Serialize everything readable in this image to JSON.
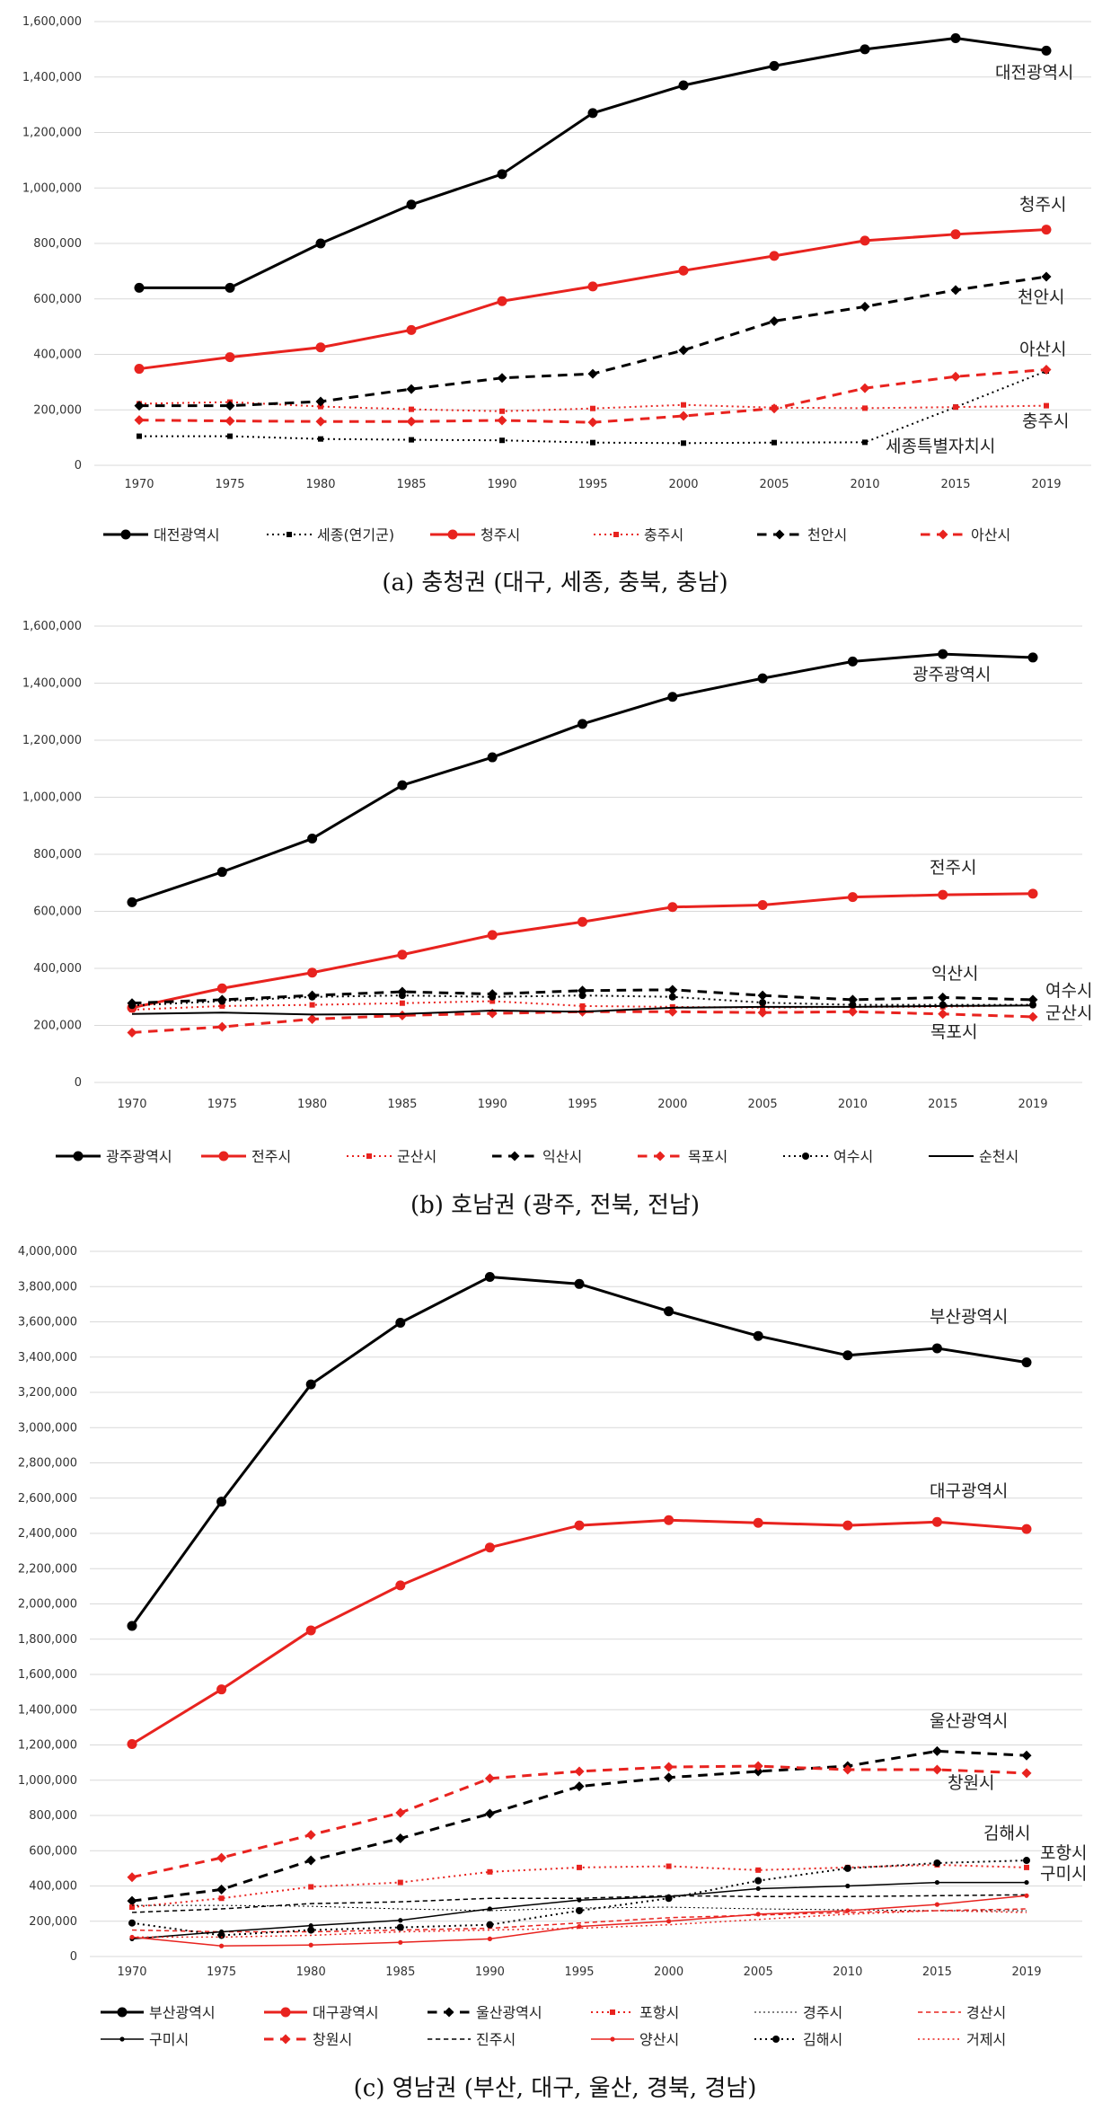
{
  "chart_data": [
    {
      "type": "line",
      "caption": "(a)  충청권 (대구, 세종, 충북, 충남)",
      "x": [
        "1970",
        "1975",
        "1980",
        "1985",
        "1990",
        "1995",
        "2000",
        "2005",
        "2010",
        "2015",
        "2019"
      ],
      "ylim": [
        0,
        1600000
      ],
      "ytick_step": 200000,
      "y_ticks": [
        "0",
        "200,000",
        "400,000",
        "600,000",
        "800,000",
        "1,000,000",
        "1,200,000",
        "1,400,000",
        "1,600,000"
      ],
      "series": [
        {
          "name": "대전광역시",
          "color": "#000000",
          "dash": "solid",
          "marker": "circle",
          "width": 3,
          "values": [
            640000,
            640000,
            800000,
            940000,
            1050000,
            1270000,
            1370000,
            1440000,
            1500000,
            1540000,
            1495000
          ]
        },
        {
          "name": "세종(연기군)",
          "color": "#000000",
          "dash": "dot",
          "marker": "square",
          "width": 2,
          "values": [
            105000,
            105000,
            95000,
            92000,
            90000,
            82000,
            80000,
            82000,
            83000,
            210000,
            340000
          ]
        },
        {
          "name": "청주시",
          "color": "#e8231f",
          "dash": "solid",
          "marker": "circle",
          "width": 3,
          "values": [
            348000,
            390000,
            425000,
            488000,
            592000,
            645000,
            702000,
            755000,
            810000,
            833000,
            850000
          ]
        },
        {
          "name": "충주시",
          "color": "#e8231f",
          "dash": "dot",
          "marker": "square",
          "width": 2,
          "values": [
            222000,
            228000,
            212000,
            202000,
            195000,
            205000,
            218000,
            208000,
            206000,
            210000,
            215000
          ]
        },
        {
          "name": "천안시",
          "color": "#000000",
          "dash": "dash",
          "marker": "diamond",
          "width": 3,
          "values": [
            215000,
            215000,
            230000,
            275000,
            315000,
            330000,
            415000,
            520000,
            572000,
            632000,
            680000
          ]
        },
        {
          "name": "아산시",
          "color": "#e8231f",
          "dash": "dash",
          "marker": "diamond",
          "width": 3,
          "values": [
            163000,
            160000,
            158000,
            158000,
            162000,
            155000,
            178000,
            205000,
            278000,
            320000,
            345000
          ]
        }
      ],
      "annotations": [
        "대전광역시",
        "청주시",
        "천안시",
        "아산시",
        "충주시",
        "세종특별자치시"
      ]
    },
    {
      "type": "line",
      "caption": "(b)  호남권 (광주, 전북, 전남)",
      "x": [
        "1970",
        "1975",
        "1980",
        "1985",
        "1990",
        "1995",
        "2000",
        "2005",
        "2010",
        "2015",
        "2019"
      ],
      "ylim": [
        0,
        1600000
      ],
      "ytick_step": 200000,
      "y_ticks": [
        "0",
        "200,000",
        "400,000",
        "600,000",
        "800,000",
        "1,000,000",
        "1,200,000",
        "1,400,000",
        "1,600,000"
      ],
      "series": [
        {
          "name": "광주광역시",
          "color": "#000000",
          "dash": "solid",
          "marker": "circle",
          "width": 3,
          "values": [
            632000,
            738000,
            855000,
            1042000,
            1140000,
            1257000,
            1352000,
            1417000,
            1476000,
            1502000,
            1490000
          ]
        },
        {
          "name": "전주시",
          "color": "#e8231f",
          "dash": "solid",
          "marker": "circle",
          "width": 3,
          "values": [
            262000,
            330000,
            385000,
            448000,
            517000,
            563000,
            615000,
            622000,
            650000,
            658000,
            662000
          ]
        },
        {
          "name": "군산시",
          "color": "#e8231f",
          "dash": "dot",
          "marker": "square",
          "width": 2,
          "values": [
            255000,
            268000,
            272000,
            278000,
            285000,
            268000,
            265000,
            262000,
            265000,
            265000,
            272000
          ]
        },
        {
          "name": "익산시",
          "color": "#000000",
          "dash": "dash",
          "marker": "diamond",
          "width": 3,
          "values": [
            278000,
            290000,
            305000,
            318000,
            310000,
            322000,
            325000,
            305000,
            290000,
            298000,
            290000
          ]
        },
        {
          "name": "목포시",
          "color": "#e8231f",
          "dash": "dash",
          "marker": "diamond",
          "width": 3,
          "values": [
            175000,
            195000,
            222000,
            235000,
            242000,
            248000,
            248000,
            245000,
            248000,
            240000,
            230000
          ]
        },
        {
          "name": "여수시",
          "color": "#000000",
          "dash": "dot",
          "marker": "circle",
          "width": 2,
          "values": [
            270000,
            285000,
            300000,
            305000,
            300000,
            305000,
            300000,
            280000,
            272000,
            272000,
            272000
          ]
        },
        {
          "name": "순천시",
          "color": "#000000",
          "dash": "solid",
          "marker": "none",
          "width": 2,
          "values": [
            240000,
            245000,
            238000,
            240000,
            252000,
            248000,
            262000,
            265000,
            265000,
            268000,
            270000
          ]
        }
      ],
      "annotations": [
        "광주광역시",
        "전주시",
        "익산시",
        "여수시",
        "군산시",
        "목포시"
      ]
    },
    {
      "type": "line",
      "caption": "(c)  영남권 (부산, 대구, 울산, 경북, 경남)",
      "x": [
        "1970",
        "1975",
        "1980",
        "1985",
        "1990",
        "1995",
        "2000",
        "2005",
        "2010",
        "2015",
        "2019"
      ],
      "ylim": [
        0,
        4000000
      ],
      "ytick_step": 200000,
      "y_ticks": [
        "0",
        "200,000",
        "400,000",
        "600,000",
        "800,000",
        "1,000,000",
        "1,200,000",
        "1,400,000",
        "1,600,000",
        "1,800,000",
        "2,000,000",
        "2,200,000",
        "2,400,000",
        "2,600,000",
        "2,800,000",
        "3,000,000",
        "3,200,000",
        "3,400,000",
        "3,600,000",
        "3,800,000",
        "4,000,000"
      ],
      "series": [
        {
          "name": "부산광역시",
          "color": "#000000",
          "dash": "solid",
          "marker": "circle",
          "width": 3,
          "values": [
            1875000,
            2580000,
            3245000,
            3595000,
            3855000,
            3815000,
            3660000,
            3520000,
            3410000,
            3450000,
            3370000
          ]
        },
        {
          "name": "대구광역시",
          "color": "#e8231f",
          "dash": "solid",
          "marker": "circle",
          "width": 3,
          "values": [
            1205000,
            1515000,
            1850000,
            2105000,
            2320000,
            2445000,
            2475000,
            2460000,
            2445000,
            2465000,
            2425000
          ]
        },
        {
          "name": "울산광역시",
          "color": "#000000",
          "dash": "dash",
          "marker": "diamond",
          "width": 3,
          "values": [
            315000,
            380000,
            545000,
            670000,
            810000,
            965000,
            1015000,
            1050000,
            1080000,
            1165000,
            1140000
          ]
        },
        {
          "name": "포항시",
          "color": "#e8231f",
          "dash": "dot",
          "marker": "square",
          "width": 2,
          "values": [
            280000,
            330000,
            395000,
            420000,
            480000,
            505000,
            512000,
            490000,
            505000,
            520000,
            505000
          ]
        },
        {
          "name": "경주시",
          "color": "#000000",
          "dash": "dot",
          "marker": "none",
          "width": 1,
          "values": [
            290000,
            290000,
            285000,
            270000,
            260000,
            275000,
            280000,
            270000,
            265000,
            260000,
            260000
          ]
        },
        {
          "name": "경산시",
          "color": "#e8231f",
          "dash": "dash",
          "marker": "none",
          "width": 1.5,
          "values": [
            150000,
            140000,
            140000,
            150000,
            160000,
            190000,
            220000,
            235000,
            250000,
            260000,
            270000
          ]
        },
        {
          "name": "구미시",
          "color": "#000000",
          "dash": "solid",
          "marker": "small",
          "width": 1.5,
          "values": [
            100000,
            140000,
            175000,
            205000,
            270000,
            320000,
            340000,
            385000,
            400000,
            420000,
            420000
          ]
        },
        {
          "name": "창원시",
          "color": "#e8231f",
          "dash": "dash",
          "marker": "diamond",
          "width": 3,
          "values": [
            450000,
            560000,
            690000,
            815000,
            1010000,
            1050000,
            1075000,
            1080000,
            1060000,
            1060000,
            1040000
          ]
        },
        {
          "name": "진주시",
          "color": "#000000",
          "dash": "dash",
          "marker": "none",
          "width": 1.5,
          "values": [
            250000,
            270000,
            300000,
            310000,
            330000,
            330000,
            345000,
            340000,
            340000,
            345000,
            350000
          ]
        },
        {
          "name": "양산시",
          "color": "#e8231f",
          "dash": "solid",
          "marker": "small",
          "width": 1.5,
          "values": [
            110000,
            60000,
            65000,
            80000,
            100000,
            170000,
            200000,
            240000,
            260000,
            295000,
            345000
          ]
        },
        {
          "name": "김해시",
          "color": "#000000",
          "dash": "dot",
          "marker": "circle",
          "width": 2,
          "values": [
            190000,
            120000,
            150000,
            165000,
            180000,
            260000,
            330000,
            430000,
            500000,
            530000,
            545000
          ]
        },
        {
          "name": "거제시",
          "color": "#e8231f",
          "dash": "dot",
          "marker": "none",
          "width": 1.5,
          "values": [
            110000,
            110000,
            120000,
            140000,
            150000,
            160000,
            180000,
            210000,
            240000,
            260000,
            250000
          ]
        }
      ],
      "annotations": [
        "부산광역시",
        "대구광역시",
        "울산광역시",
        "창원시",
        "김해시",
        "포항시",
        "구미시"
      ]
    }
  ]
}
